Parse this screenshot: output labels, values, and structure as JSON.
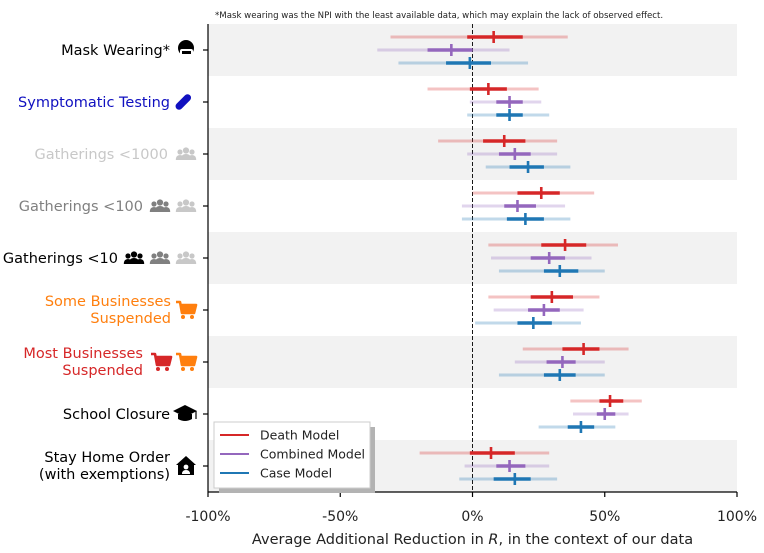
{
  "chart_data": {
    "type": "interval",
    "annotation": "*Mask wearing was the NPI with the least available data, which may explain the lack of observed effect.",
    "xlabel_parts": [
      "Average Additional Reduction in ",
      "R",
      ", in the context of our data"
    ],
    "xlim": [
      -100,
      100
    ],
    "x_ticks": [
      -100,
      -50,
      0,
      50,
      100
    ],
    "x_tick_labels": [
      "-100%",
      "-50%",
      "0%",
      "50%",
      "100%"
    ],
    "reference_line_x": 0,
    "categories": [
      {
        "label": [
          "Mask Wearing*"
        ],
        "color": "#000000",
        "icon": "mask-icon"
      },
      {
        "label": [
          "Symptomatic Testing"
        ],
        "color": "#1010c0",
        "icon": "test-tube-icon"
      },
      {
        "label": [
          "Gatherings <1000"
        ],
        "color": "#c8c8c8",
        "icon": "people-group-icon",
        "icon_colors": [
          "#c8c8c8"
        ]
      },
      {
        "label": [
          "Gatherings <100"
        ],
        "color": "#808080",
        "icon": "people-group-icon",
        "icon_colors": [
          "#808080",
          "#c8c8c8"
        ]
      },
      {
        "label": [
          "Gatherings <10"
        ],
        "color": "#000000",
        "icon": "people-group-icon",
        "icon_colors": [
          "#000000",
          "#808080",
          "#c8c8c8"
        ]
      },
      {
        "label": [
          "Some Businesses",
          "Suspended"
        ],
        "color": "#ff7f0e",
        "icon": "cart-icon",
        "icon_colors": [
          "#ff7f0e"
        ]
      },
      {
        "label": [
          "Most Businesses",
          "Suspended"
        ],
        "color": "#d62728",
        "icon": "cart-icon",
        "icon_colors": [
          "#d62728",
          "#ff7f0e"
        ]
      },
      {
        "label": [
          "School Closure"
        ],
        "color": "#000000",
        "icon": "graduation-cap-icon"
      },
      {
        "label": [
          "Stay Home Order",
          "(with exemptions)"
        ],
        "color": "#000000",
        "icon": "house-person-icon"
      }
    ],
    "series": [
      {
        "name": "Death Model",
        "color": "#d62728",
        "median": [
          8,
          6,
          12,
          26,
          35,
          30,
          42,
          52,
          7
        ],
        "ci50": [
          [
            -2,
            19
          ],
          [
            -1,
            13
          ],
          [
            4,
            20
          ],
          [
            17,
            33
          ],
          [
            26,
            43
          ],
          [
            22,
            38
          ],
          [
            34,
            48
          ],
          [
            48,
            57
          ],
          [
            -1,
            16
          ]
        ],
        "ci95": [
          [
            -31,
            36
          ],
          [
            -17,
            25
          ],
          [
            -13,
            32
          ],
          [
            0,
            46
          ],
          [
            6,
            55
          ],
          [
            6,
            48
          ],
          [
            19,
            59
          ],
          [
            37,
            64
          ],
          [
            -20,
            29
          ]
        ]
      },
      {
        "name": "Combined Model",
        "color": "#9467bd",
        "median": [
          -8,
          14,
          16,
          17,
          29,
          27,
          34,
          50,
          14
        ],
        "ci50": [
          [
            -17,
            0
          ],
          [
            9,
            19
          ],
          [
            10,
            22
          ],
          [
            12,
            24
          ],
          [
            22,
            35
          ],
          [
            21,
            33
          ],
          [
            28,
            39
          ],
          [
            47,
            54
          ],
          [
            9,
            20
          ]
        ],
        "ci95": [
          [
            -36,
            14
          ],
          [
            -1,
            26
          ],
          [
            -2,
            32
          ],
          [
            -4,
            35
          ],
          [
            7,
            45
          ],
          [
            8,
            42
          ],
          [
            16,
            50
          ],
          [
            38,
            59
          ],
          [
            -3,
            29
          ]
        ]
      },
      {
        "name": "Case Model",
        "color": "#1f77b4",
        "median": [
          -1,
          14,
          21,
          20,
          33,
          23,
          33,
          41,
          16
        ],
        "ci50": [
          [
            -10,
            7
          ],
          [
            9,
            19
          ],
          [
            14,
            27
          ],
          [
            13,
            27
          ],
          [
            27,
            40
          ],
          [
            17,
            30
          ],
          [
            27,
            39
          ],
          [
            36,
            46
          ],
          [
            8,
            22
          ]
        ],
        "ci95": [
          [
            -28,
            21
          ],
          [
            -2,
            29
          ],
          [
            5,
            37
          ],
          [
            -4,
            37
          ],
          [
            10,
            50
          ],
          [
            1,
            41
          ],
          [
            10,
            50
          ],
          [
            25,
            54
          ],
          [
            -5,
            32
          ]
        ]
      }
    ],
    "legend_position": "lower-left"
  }
}
